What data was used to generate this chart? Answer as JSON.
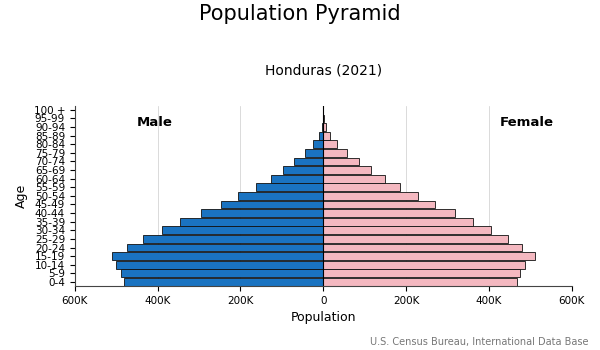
{
  "title": "Population Pyramid",
  "subtitle": "Honduras (2021)",
  "xlabel": "Population",
  "ylabel": "Age",
  "source": "U.S. Census Bureau, International Data Base",
  "age_groups": [
    "0-4",
    "5-9",
    "10-14",
    "15-19",
    "20-24",
    "25-29",
    "30-34",
    "35-39",
    "40-44",
    "45-49",
    "50-54",
    "55-59",
    "60-64",
    "65-69",
    "70-74",
    "75-79",
    "80-84",
    "85-89",
    "90-94",
    "95-99",
    "100 +"
  ],
  "male": [
    480000,
    488000,
    500000,
    510000,
    475000,
    435000,
    390000,
    345000,
    295000,
    248000,
    205000,
    163000,
    127000,
    97000,
    70000,
    45000,
    24000,
    10000,
    3500,
    900,
    150
  ],
  "female": [
    468000,
    476000,
    488000,
    510000,
    480000,
    445000,
    405000,
    362000,
    318000,
    270000,
    228000,
    185000,
    148000,
    116000,
    87000,
    58000,
    34000,
    15000,
    5500,
    1500,
    250
  ],
  "male_color": "#1a73c1",
  "female_color": "#f4b8c0",
  "bar_edgecolor": "#111111",
  "bar_linewidth": 0.6,
  "background_color": "#ffffff",
  "xlim": 600000,
  "male_label": "Male",
  "female_label": "Female",
  "title_fontsize": 15,
  "subtitle_fontsize": 10,
  "label_fontsize": 9,
  "tick_fontsize": 7.5,
  "source_fontsize": 7
}
